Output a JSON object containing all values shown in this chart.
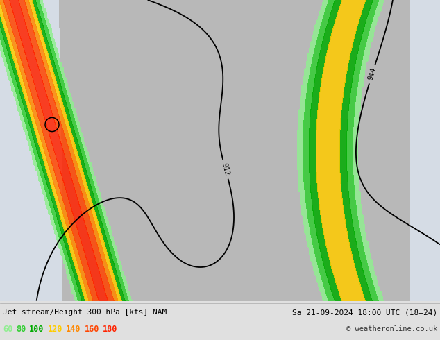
{
  "title_left": "Jet stream/Height 300 hPa [kts] NAM",
  "title_right": "Sa 21-09-2024 18:00 UTC (18+24)",
  "copyright": "© weatheronline.co.uk",
  "legend_values": [
    "60",
    "80",
    "100",
    "120",
    "140",
    "160",
    "180"
  ],
  "legend_colors": [
    "#90ee90",
    "#32cd32",
    "#00aa00",
    "#ffcc00",
    "#ff8800",
    "#ff4400",
    "#ff2200"
  ],
  "contour_levels": [
    60,
    80,
    100,
    120,
    140,
    160,
    180,
    220
  ],
  "bottom_bg": "#e0e0e0",
  "map_bg": "#d0d8e0",
  "land_color": "#b8b8b8",
  "figwidth": 6.34,
  "figheight": 4.9,
  "dpi": 100
}
